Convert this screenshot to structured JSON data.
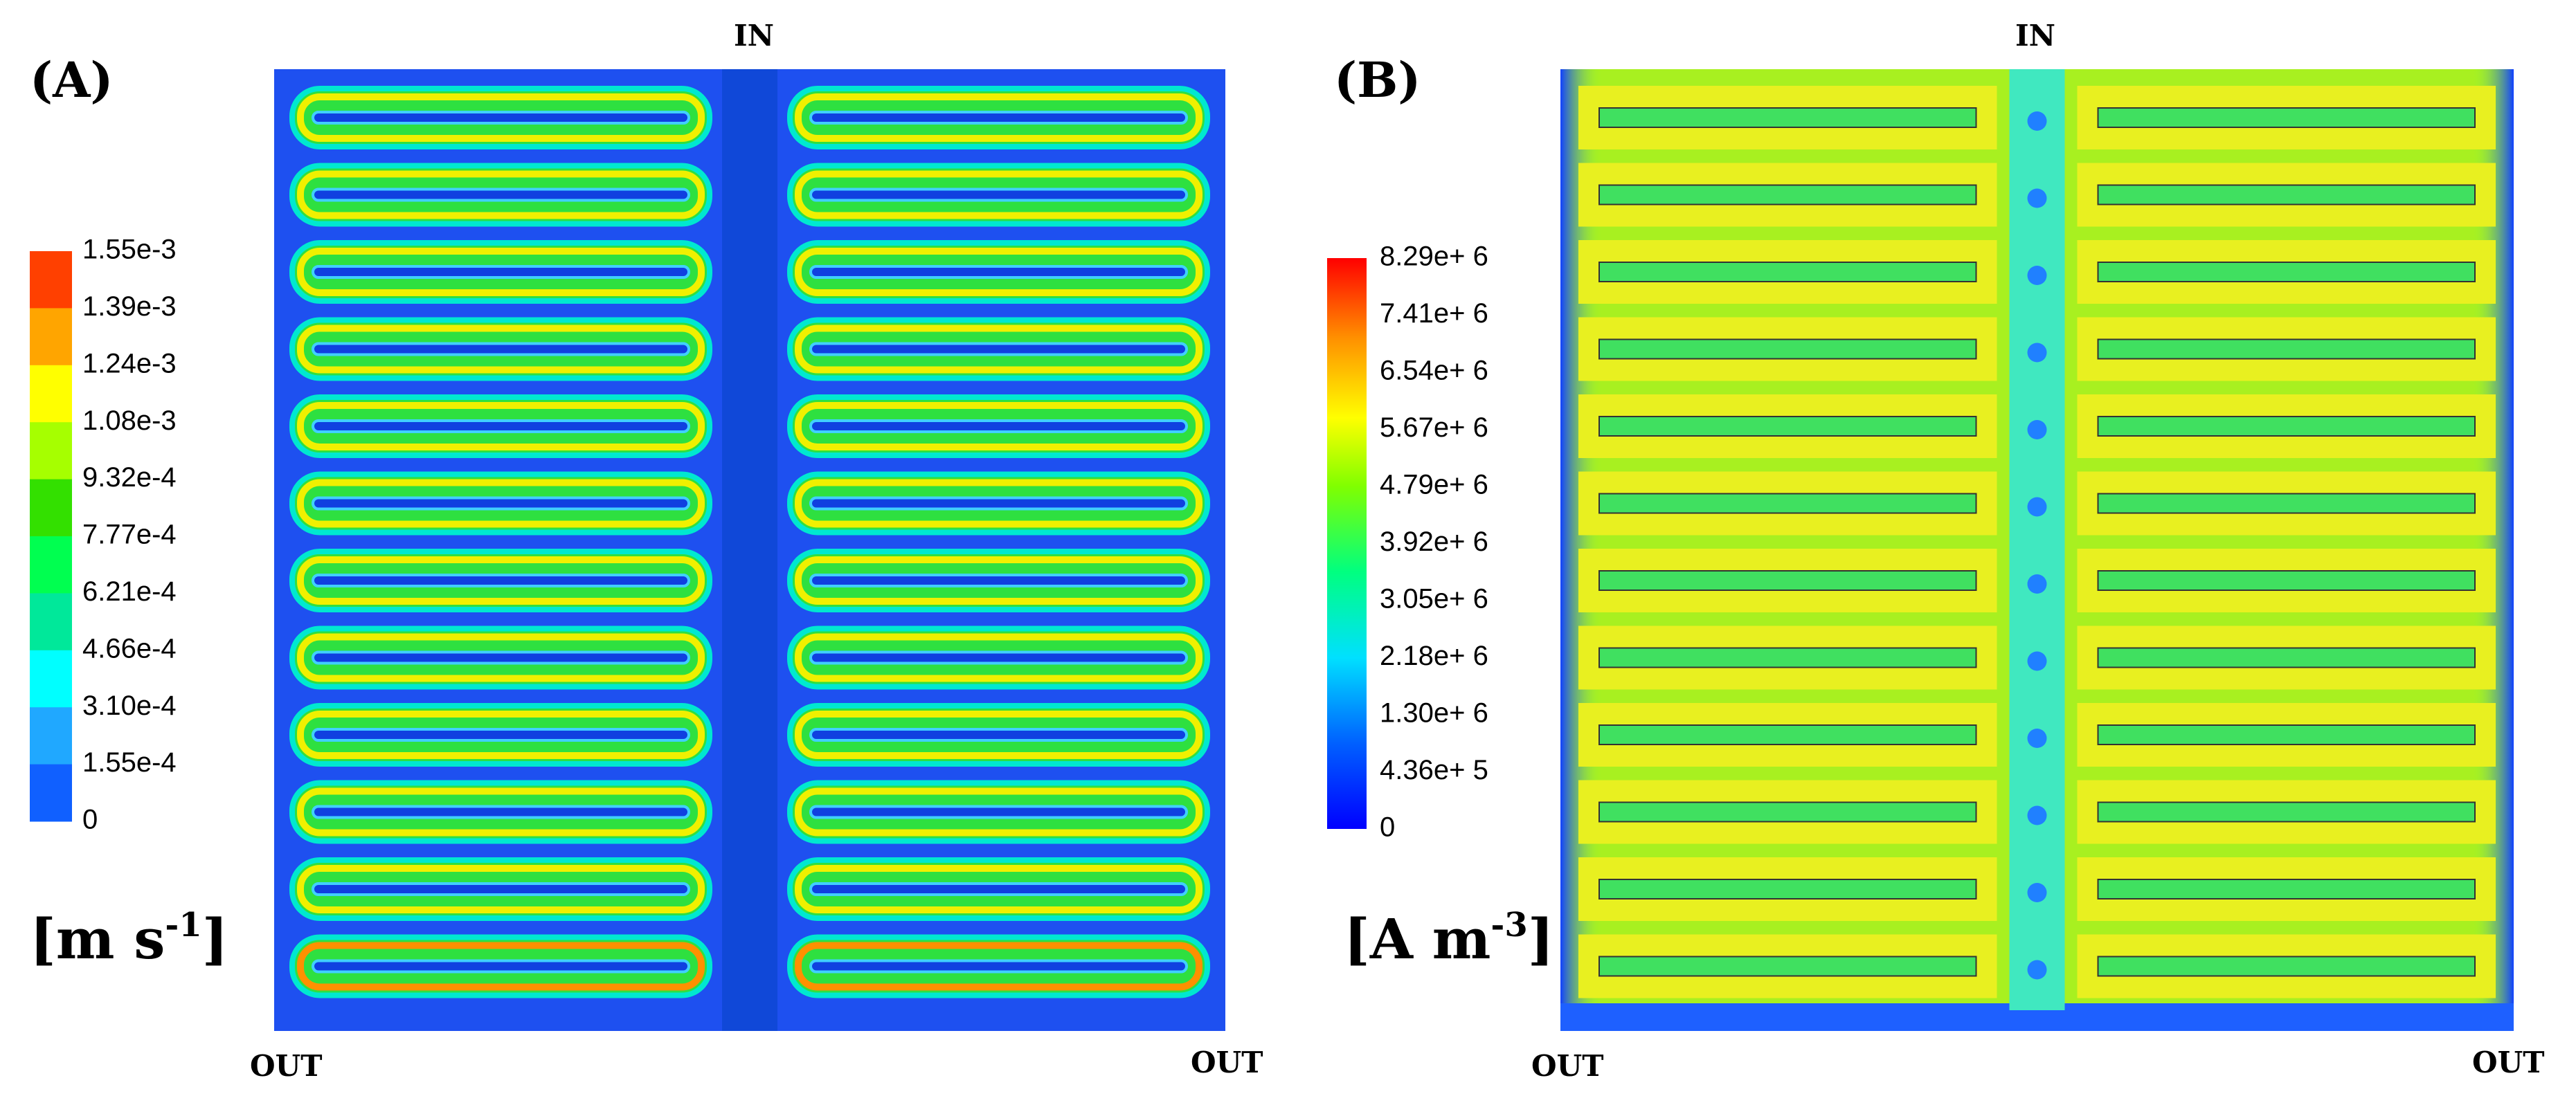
{
  "panels": [
    {
      "label": "(A)",
      "inlet": "IN",
      "outlets": [
        "OUT",
        "OUT"
      ],
      "colorbar": {
        "ticks": [
          "1.55e-3",
          "1.39e-3",
          "1.24e-3",
          "1.08e-3",
          "9.32e-4",
          "7.77e-4",
          "6.21e-4",
          "4.66e-4",
          "3.10e-4",
          "1.55e-4",
          "0"
        ],
        "unit_prefix": "[m s",
        "unit_exponent": "-1",
        "unit_suffix": "]"
      }
    },
    {
      "label": "(B)",
      "inlet": "IN",
      "outlets": [
        "OUT",
        "OUT"
      ],
      "colorbar": {
        "ticks": [
          "8.29e+ 6",
          "7.41e+ 6",
          "6.54e+ 6",
          "5.67e+ 6",
          "4.79e+ 6",
          "3.92e+ 6",
          "3.05e+ 6",
          "2.18e+ 6",
          "1.30e+ 6",
          "4.36e+ 5",
          "0"
        ],
        "unit_prefix": "[A m",
        "unit_exponent": "-3",
        "unit_suffix": "]"
      }
    }
  ]
}
